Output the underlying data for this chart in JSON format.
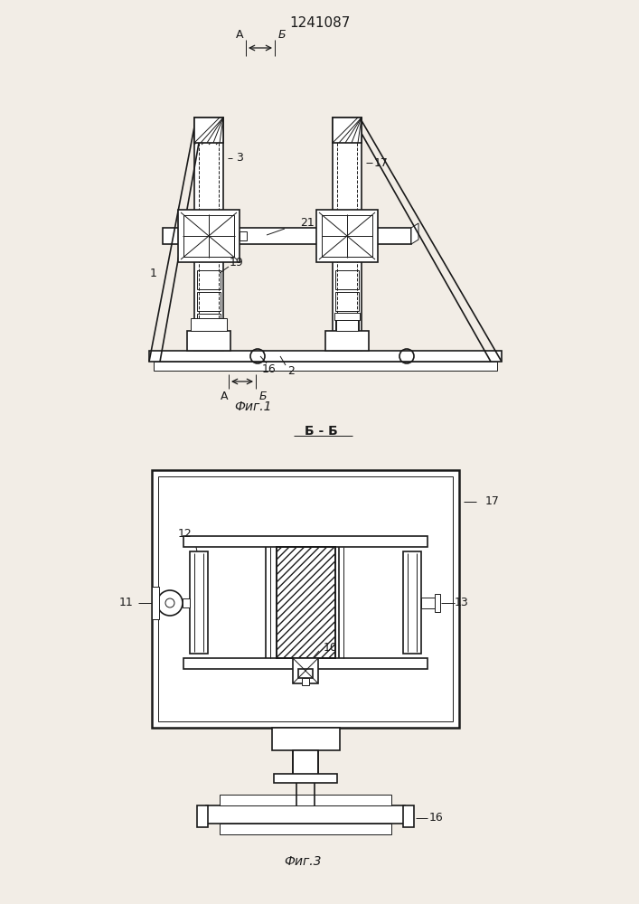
{
  "title": "1241087",
  "fig1_caption": "Фиг.1",
  "fig3_caption": "Фиг.3",
  "bb_label": "Б - Б",
  "background_color": "#f2ede6",
  "line_color": "#1a1a1a",
  "label_color": "#111111",
  "white": "#ffffff"
}
